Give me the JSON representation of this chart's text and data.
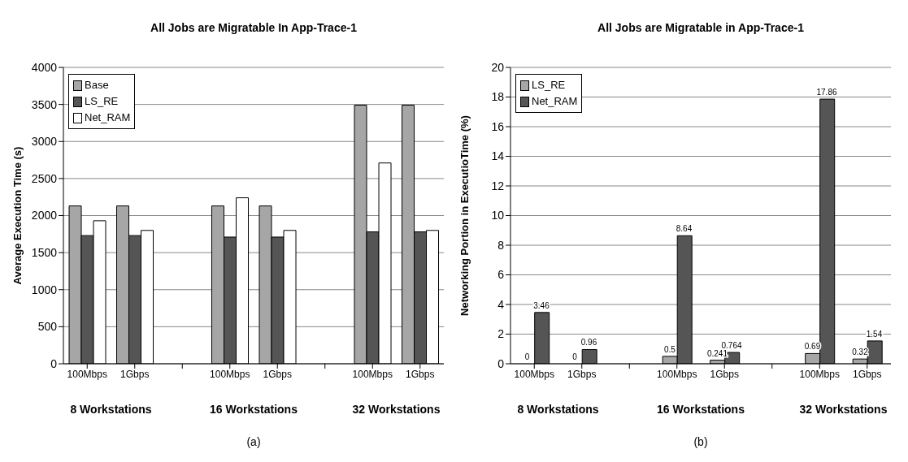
{
  "chart_data": [
    {
      "type": "bar",
      "title": "All Jobs are Migratable In App-Trace-1",
      "ylabel": "Average Execution Time (s)",
      "categories": [
        "100Mbps",
        "1Gbps",
        null,
        "100Mbps",
        "1Gbps",
        null,
        "100Mbps",
        "1Gbps"
      ],
      "series": [
        {
          "name": "Base",
          "color": "#a6a6a6",
          "values": [
            2130,
            2130,
            null,
            2130,
            2130,
            null,
            3490,
            3490
          ]
        },
        {
          "name": "LS_RE",
          "color": "#555555",
          "values": [
            1730,
            1730,
            null,
            1710,
            1710,
            null,
            1780,
            1780
          ]
        },
        {
          "name": "Net_RAM",
          "color": "#ffffff",
          "values": [
            1930,
            1800,
            null,
            2240,
            1800,
            null,
            2710,
            1800
          ]
        }
      ],
      "ylim": [
        0,
        4000
      ],
      "yticks": [
        0,
        500,
        1000,
        1500,
        2000,
        2500,
        3000,
        3500,
        4000
      ],
      "grid": "y",
      "legend": "top left",
      "annotations": [
        "8 Workstations",
        "16 Workstations",
        "32 Workstations",
        "(a)"
      ]
    },
    {
      "type": "bar",
      "title": "All Jobs are Migratable in App-Trace-1",
      "ylabel": "Networking Portion in ExecutioTime (%)",
      "categories": [
        "100Mbps",
        "1Gbps",
        null,
        "100Mbps",
        "1Gbps",
        null,
        "100Mbps",
        "1Gbps"
      ],
      "series": [
        {
          "name": "LS_RE",
          "color": "#a6a6a6",
          "values": [
            0,
            0,
            null,
            0.5,
            0.241,
            null,
            0.69,
            0.32
          ]
        },
        {
          "name": "Net_RAM",
          "color": "#555555",
          "values": [
            3.46,
            0.96,
            null,
            8.64,
            0.764,
            null,
            17.86,
            1.54
          ]
        }
      ],
      "ylim": [
        0,
        20
      ],
      "yticks": [
        0,
        2,
        4,
        6,
        8,
        10,
        12,
        14,
        16,
        18,
        20
      ],
      "grid": "y",
      "legend": "top left",
      "data_labels": true,
      "annotations": [
        "8 Workstations",
        "16 Workstations",
        "32 Workstations",
        "(b)"
      ]
    }
  ]
}
